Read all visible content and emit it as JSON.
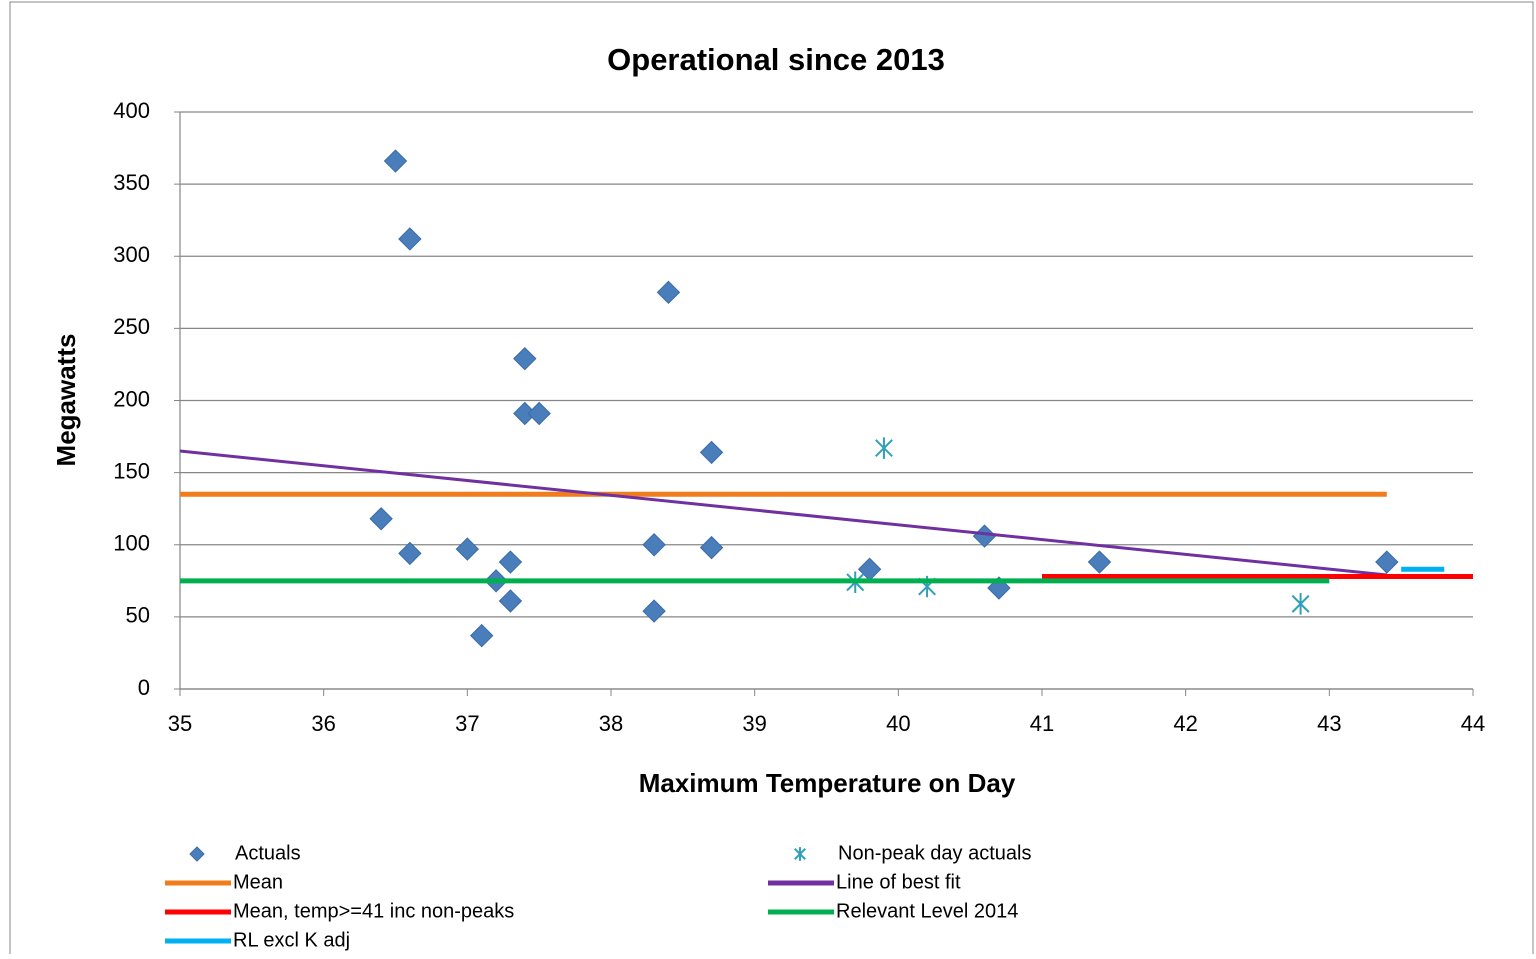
{
  "chart_data": {
    "type": "scatter",
    "title": "Operational since 2013",
    "x_label": "Maximum Temperature on Day",
    "y_label": "Megawatts",
    "xlim": [
      35,
      44
    ],
    "xticks": [
      35,
      36,
      37,
      38,
      39,
      40,
      41,
      42,
      43,
      44
    ],
    "ylim": [
      0,
      400
    ],
    "yticks": [
      0,
      50,
      100,
      150,
      200,
      250,
      300,
      350,
      400
    ],
    "grid": true,
    "legend": "bottom",
    "series": [
      {
        "name": "Actuals",
        "color": "#4a7ebb",
        "mode": "markers",
        "marker": "diamond",
        "x": [
          36.5,
          36.6,
          36.4,
          36.6,
          37.0,
          37.1,
          37.2,
          37.3,
          37.3,
          37.4,
          37.4,
          37.5,
          38.3,
          38.3,
          38.4,
          38.7,
          38.7,
          39.8,
          40.6,
          40.7,
          41.4,
          43.4
        ],
        "values": [
          366,
          312,
          118,
          94,
          97,
          37,
          75,
          88,
          61,
          229,
          191,
          191,
          100,
          54,
          275,
          164,
          98,
          83,
          106,
          70,
          88,
          88
        ]
      },
      {
        "name": "Non-peak day actuals",
        "color": "#31a0b8",
        "mode": "markers",
        "marker": "asterisk",
        "x": [
          39.7,
          39.9,
          40.2,
          42.8
        ],
        "values": [
          74,
          167,
          71,
          59
        ]
      },
      {
        "name": "Mean",
        "color": "#f07c1e",
        "mode": "line",
        "x": [
          35,
          43.4
        ],
        "values": [
          135,
          135
        ]
      },
      {
        "name": "Line of best fit",
        "color": "#7030a0",
        "mode": "line",
        "x": [
          35,
          43.4
        ],
        "values": [
          165,
          79
        ]
      },
      {
        "name": "Mean, temp>=41 inc non-peaks",
        "color": "#ff0000",
        "mode": "line",
        "x": [
          41,
          44
        ],
        "values": [
          78,
          78
        ]
      },
      {
        "name": "Relevant Level 2014",
        "color": "#00b050",
        "mode": "line",
        "x": [
          35,
          43
        ],
        "values": [
          75,
          75
        ]
      },
      {
        "name": "RL excl K adj",
        "color": "#00b0f0",
        "mode": "line",
        "x": [
          43.5,
          43.8
        ],
        "values": [
          83,
          83
        ]
      }
    ]
  }
}
